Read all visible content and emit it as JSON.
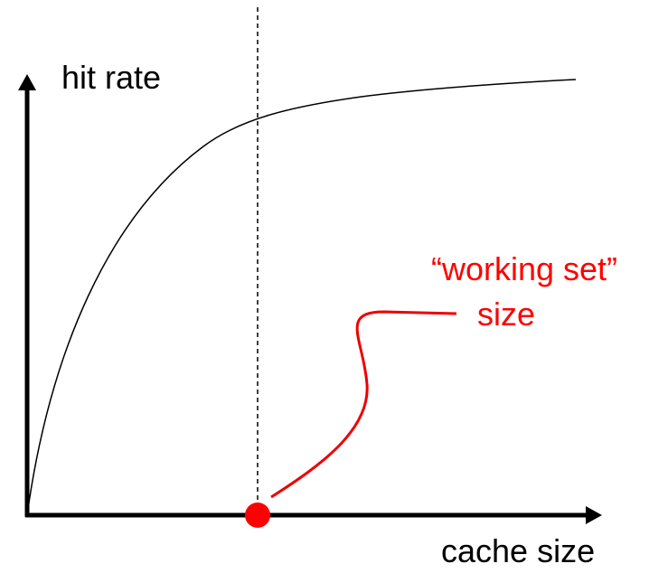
{
  "axes": {
    "y_label": "hit rate",
    "x_label": "cache size"
  },
  "annotation": {
    "lines": [
      "“working set”",
      "size"
    ]
  }
}
